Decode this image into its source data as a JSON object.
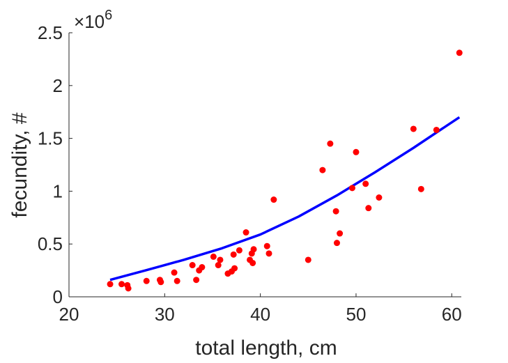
{
  "chart_data": {
    "type": "scatter",
    "xlabel": "total length, cm",
    "ylabel": "fecundity, #",
    "y_exponent_base": "10",
    "y_exponent_power": "6",
    "xlim": [
      20,
      61
    ],
    "ylim": [
      0,
      2.5
    ],
    "x_ticks": [
      20,
      30,
      40,
      50,
      60
    ],
    "y_ticks": [
      0,
      0.5,
      1,
      1.5,
      2,
      2.5
    ],
    "x_tick_labels": [
      "20",
      "30",
      "40",
      "50",
      "60"
    ],
    "y_tick_labels": [
      "0",
      "0.5",
      "1",
      "1.5",
      "2",
      "2.5"
    ],
    "grid": false,
    "series": [
      {
        "type": "scatter",
        "color": "#ff0000",
        "points": [
          [
            24.3,
            0.12
          ],
          [
            25.5,
            0.12
          ],
          [
            26.1,
            0.11
          ],
          [
            26.2,
            0.08
          ],
          [
            28.1,
            0.15
          ],
          [
            29.5,
            0.16
          ],
          [
            29.6,
            0.14
          ],
          [
            31.0,
            0.23
          ],
          [
            31.3,
            0.15
          ],
          [
            32.9,
            0.3
          ],
          [
            33.3,
            0.16
          ],
          [
            33.6,
            0.25
          ],
          [
            33.9,
            0.28
          ],
          [
            35.1,
            0.38
          ],
          [
            35.6,
            0.3
          ],
          [
            35.8,
            0.35
          ],
          [
            36.6,
            0.22
          ],
          [
            37.0,
            0.24
          ],
          [
            37.2,
            0.4
          ],
          [
            37.3,
            0.27
          ],
          [
            37.8,
            0.44
          ],
          [
            38.5,
            0.61
          ],
          [
            38.9,
            0.35
          ],
          [
            39.1,
            0.41
          ],
          [
            39.2,
            0.32
          ],
          [
            39.3,
            0.45
          ],
          [
            40.7,
            0.48
          ],
          [
            40.9,
            0.41
          ],
          [
            41.4,
            0.92
          ],
          [
            45.0,
            0.35
          ],
          [
            46.5,
            1.2
          ],
          [
            47.3,
            1.45
          ],
          [
            47.9,
            0.81
          ],
          [
            48.0,
            0.51
          ],
          [
            48.3,
            0.6
          ],
          [
            49.6,
            1.03
          ],
          [
            50.0,
            1.37
          ],
          [
            51.0,
            1.07
          ],
          [
            51.3,
            0.84
          ],
          [
            52.4,
            0.94
          ],
          [
            56.0,
            1.59
          ],
          [
            56.8,
            1.02
          ],
          [
            58.4,
            1.58
          ],
          [
            60.8,
            2.31
          ]
        ]
      },
      {
        "type": "line",
        "color": "#0000ff",
        "x": [
          24.3,
          28,
          32,
          36,
          40,
          44,
          48,
          52,
          56,
          60.8
        ],
        "values": [
          0.16,
          0.25,
          0.35,
          0.46,
          0.59,
          0.76,
          0.96,
          1.18,
          1.41,
          1.7
        ]
      }
    ]
  }
}
